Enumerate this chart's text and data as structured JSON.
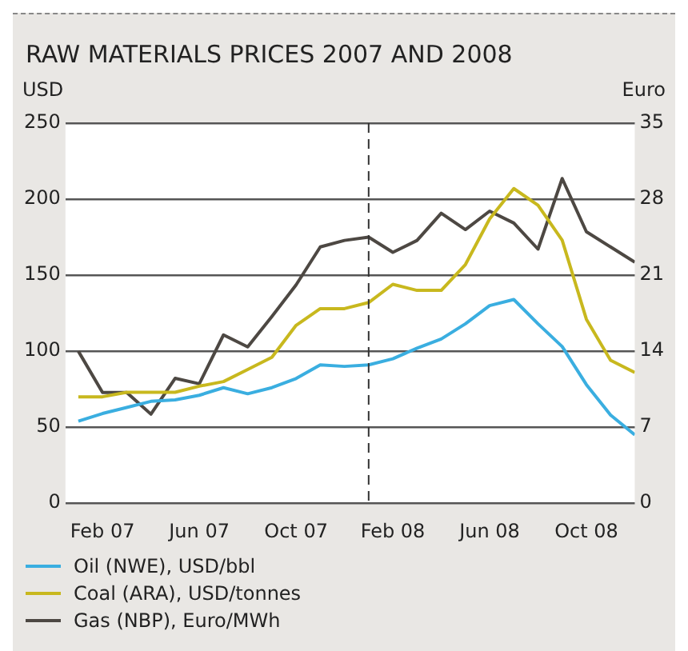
{
  "chart_data": {
    "type": "line",
    "title": "RAW MATERIALS PRICES 2007 AND 2008",
    "ylabel": "USD",
    "y2label": "Euro",
    "x": [
      "2007-01",
      "2007-02",
      "2007-03",
      "2007-04",
      "2007-05",
      "2007-06",
      "2007-07",
      "2007-08",
      "2007-09",
      "2007-10",
      "2007-11",
      "2007-12",
      "2008-01",
      "2008-02",
      "2008-03",
      "2008-04",
      "2008-05",
      "2008-06",
      "2008-07",
      "2008-08",
      "2008-09",
      "2008-10",
      "2008-11",
      "2008-12"
    ],
    "xlim": [
      "2006-12-15",
      "2008-12"
    ],
    "xticks": [
      {
        "value": "2007-02",
        "label": "Feb 07"
      },
      {
        "value": "2007-06",
        "label": "Jun 07"
      },
      {
        "value": "2007-10",
        "label": "Oct 07"
      },
      {
        "value": "2008-02",
        "label": "Feb 08"
      },
      {
        "value": "2008-06",
        "label": "Jun 08"
      },
      {
        "value": "2008-10",
        "label": "Oct 08"
      }
    ],
    "ylim": [
      0,
      250
    ],
    "yticks": [
      0,
      50,
      100,
      150,
      200,
      250
    ],
    "y2lim": [
      0,
      35
    ],
    "y2ticks": [
      0,
      7,
      14,
      21,
      28,
      35
    ],
    "series": [
      {
        "name": "Oil (NWE), USD/bbl",
        "color": "#3aaee0",
        "values": [
          54,
          59,
          63,
          67,
          68,
          71,
          76,
          72,
          76,
          82,
          91,
          90,
          91,
          95,
          102,
          108,
          118,
          130,
          134,
          118,
          103,
          78,
          58,
          45
        ]
      },
      {
        "name": "Coal (ARA), USD/tonnes",
        "color": "#c8b81e",
        "values": [
          70,
          70,
          73,
          73,
          73,
          77,
          80,
          88,
          96,
          117,
          128,
          128,
          132,
          144,
          140,
          140,
          157,
          187,
          207,
          196,
          173,
          121,
          94,
          86
        ]
      },
      {
        "name": "Gas (NBP), Euro/MWh",
        "color": "#4d4843",
        "axis": "y2",
        "values": [
          14.0,
          10.2,
          10.2,
          8.2,
          11.5,
          11.0,
          15.5,
          14.4,
          17.2,
          20.1,
          23.6,
          24.2,
          24.5,
          23.1,
          24.2,
          26.7,
          25.2,
          26.9,
          25.8,
          23.4,
          29.9,
          25.0,
          23.6,
          22.2
        ]
      }
    ],
    "ref_lines": [
      {
        "axis": "x",
        "value": "2008-01",
        "color": "#333333",
        "line_style": "dashed"
      }
    ],
    "grid": "y",
    "legend": "bottom left",
    "marker": "none",
    "line_style": "solid"
  }
}
